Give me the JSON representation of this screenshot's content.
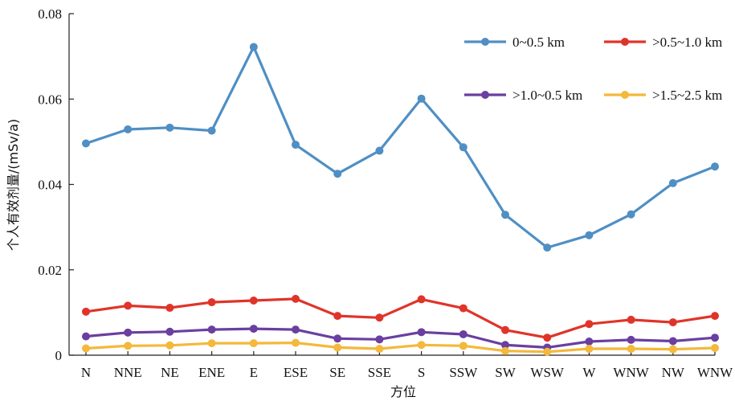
{
  "chart_data": {
    "type": "line",
    "xlabel": "方位",
    "ylabel": "个人有效剂量/(mSv/a)",
    "ylim": [
      0,
      0.08
    ],
    "yticks": [
      "0",
      "0.02",
      "0.04",
      "0.06",
      "0.08"
    ],
    "categories": [
      "N",
      "NNE",
      "NE",
      "ENE",
      "E",
      "ESE",
      "SE",
      "SSE",
      "S",
      "SSW",
      "SW",
      "WSW",
      "W",
      "WNW",
      "NW",
      "WNW"
    ],
    "legend_position": "top-right",
    "grid": false,
    "series": [
      {
        "name": "0~0.5 km",
        "color": "#4f8fc4",
        "values": [
          0.0496,
          0.0529,
          0.0533,
          0.0526,
          0.0722,
          0.0493,
          0.0425,
          0.0479,
          0.0601,
          0.0487,
          0.0329,
          0.0252,
          0.0281,
          0.033,
          0.0403,
          0.0442
        ]
      },
      {
        "name": ">0.5~1.0 km",
        "color": "#e0342a",
        "values": [
          0.0102,
          0.0116,
          0.0111,
          0.0124,
          0.0128,
          0.0132,
          0.0092,
          0.0088,
          0.0131,
          0.011,
          0.0059,
          0.0041,
          0.0073,
          0.0083,
          0.0077,
          0.0092
        ]
      },
      {
        "name": ">1.0~0.5 km",
        "color": "#6a3fa0",
        "values": [
          0.0044,
          0.0053,
          0.0055,
          0.006,
          0.0062,
          0.006,
          0.0039,
          0.0037,
          0.0054,
          0.0049,
          0.0024,
          0.0018,
          0.0032,
          0.0036,
          0.0033,
          0.0041
        ]
      },
      {
        "name": ">1.5~2.5 km",
        "color": "#f4b83b",
        "values": [
          0.0016,
          0.0022,
          0.0023,
          0.0028,
          0.0028,
          0.0029,
          0.0018,
          0.0015,
          0.0024,
          0.0022,
          0.001,
          0.0008,
          0.0015,
          0.0015,
          0.0014,
          0.0017
        ]
      }
    ]
  }
}
